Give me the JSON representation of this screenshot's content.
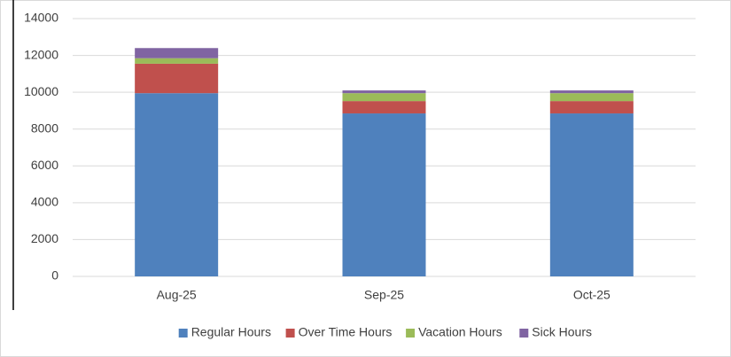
{
  "chart_data": {
    "type": "stacked_bar",
    "categories": [
      "Aug-25",
      "Sep-25",
      "Oct-25"
    ],
    "series": [
      {
        "name": "Regular Hours",
        "color": "#4f81bd",
        "values": [
          9950,
          8850,
          8850
        ]
      },
      {
        "name": "Over Time Hours",
        "color": "#c0504d",
        "values": [
          1600,
          670,
          670
        ]
      },
      {
        "name": "Vacation Hours",
        "color": "#9bbb59",
        "values": [
          300,
          430,
          430
        ]
      },
      {
        "name": "Sick Hours",
        "color": "#8064a2",
        "values": [
          550,
          150,
          150
        ]
      }
    ],
    "ylim": [
      0,
      14000
    ],
    "yticks": [
      0,
      2000,
      4000,
      6000,
      8000,
      10000,
      12000,
      14000
    ],
    "grid": true,
    "legend": "bottom"
  }
}
